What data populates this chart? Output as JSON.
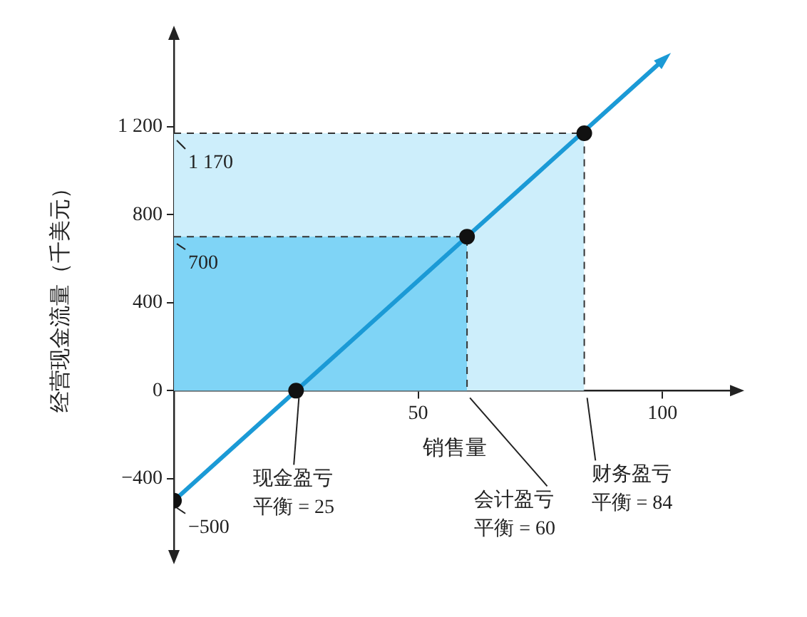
{
  "chart_data": {
    "type": "line",
    "xlabel": "销售量",
    "ylabel": "经营现金流量（千美元）",
    "xlim": [
      0,
      115
    ],
    "ylim": [
      -750,
      1620
    ],
    "xticks": [
      50,
      100
    ],
    "yticks": [
      {
        "value": -400,
        "label": "−400"
      },
      0,
      400,
      800,
      {
        "value": 1200,
        "label": "1 200"
      }
    ],
    "grid": false,
    "legend": false,
    "line_style": "solid",
    "series": [
      {
        "type": "area",
        "color": "#cdeefb",
        "x": [
          0,
          84,
          84
        ],
        "values": [
          1170,
          1170,
          0
        ],
        "line_style": "dashed"
      },
      {
        "type": "area",
        "color": "#7fd4f6",
        "x": [
          0,
          60,
          60
        ],
        "values": [
          700,
          700,
          0
        ],
        "line_style": "dashed"
      },
      {
        "type": "line",
        "color": "#1b9ad6",
        "x": [
          0,
          100
        ],
        "values": [
          -500,
          1500
        ]
      },
      {
        "type": "scatter",
        "color": "#111111",
        "marker": "circle",
        "x": [
          0,
          25,
          60,
          84
        ],
        "values": [
          -500,
          0,
          700,
          1170
        ]
      }
    ],
    "annotations": [
      {
        "text": "1 170",
        "x": 0,
        "y": 1170
      },
      {
        "text": "700",
        "x": 0,
        "y": 700
      },
      {
        "text": "−500",
        "x": 0,
        "y": -500
      },
      {
        "text": "现金盈亏平衡 = 25",
        "x": 25,
        "y": 0
      },
      {
        "text": "会计盈亏平衡 = 60",
        "x": 60,
        "y": 0
      },
      {
        "text": "财务盈亏平衡 = 84",
        "x": 84,
        "y": 0
      }
    ]
  }
}
